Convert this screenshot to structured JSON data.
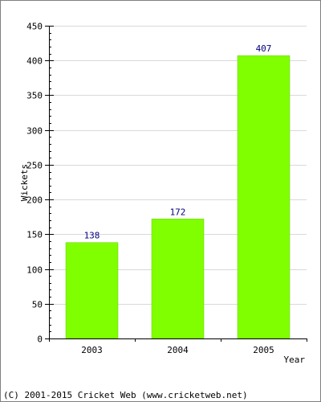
{
  "chart_data": {
    "type": "bar",
    "categories": [
      "2003",
      "2004",
      "2005"
    ],
    "values": [
      138,
      172,
      407
    ],
    "data_labels": [
      "138",
      "172",
      "407"
    ],
    "xlabel": "Year",
    "ylabel": "Wickets",
    "ylim": [
      0,
      450
    ],
    "y_ticks": [
      0,
      50,
      100,
      150,
      200,
      250,
      300,
      350,
      400,
      450
    ],
    "y_minor_step": 10,
    "grid": true,
    "legend": "none",
    "colors": {
      "bar": "#80ff00",
      "bar_edge": "#66cc00",
      "data_label": "#000080",
      "grid": "#d9d9d9",
      "axis": "#000000"
    }
  },
  "footer": {
    "copyright": "(C) 2001-2015 Cricket Web (www.cricketweb.net)"
  }
}
